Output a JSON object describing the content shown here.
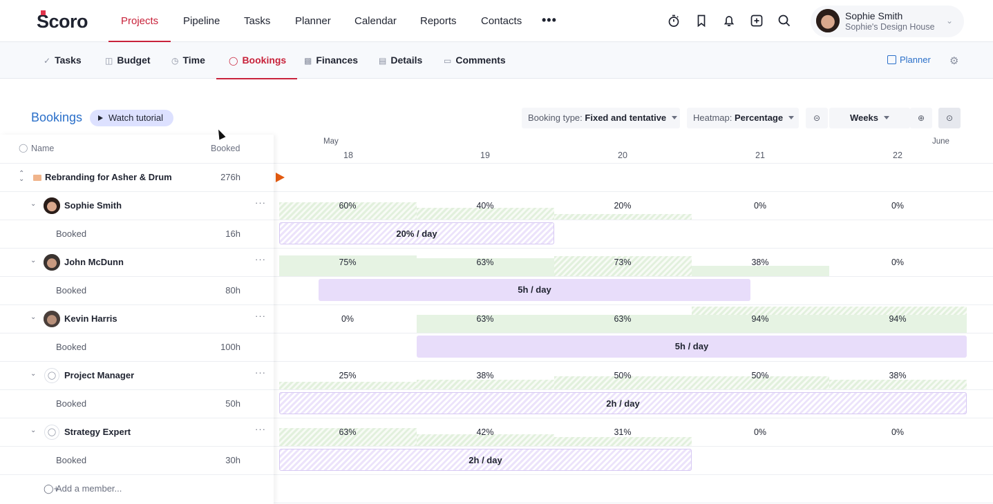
{
  "topnav": {
    "logo": "Scoro",
    "items": [
      {
        "label": "Projects",
        "active": true
      },
      {
        "label": "Pipeline"
      },
      {
        "label": "Tasks"
      },
      {
        "label": "Planner"
      },
      {
        "label": "Calendar"
      },
      {
        "label": "Reports"
      },
      {
        "label": "Contacts"
      }
    ],
    "more": "•••",
    "icons": [
      "stopwatch-icon",
      "bookmark-icon",
      "bell-icon",
      "plus-square-icon",
      "search-icon"
    ],
    "user": {
      "name": "Sophie Smith",
      "org": "Sophie's Design House"
    }
  },
  "subnav": {
    "items": [
      {
        "label": "Tasks",
        "icon": "check-icon"
      },
      {
        "label": "Budget",
        "icon": "budget-icon"
      },
      {
        "label": "Time",
        "icon": "clock-icon"
      },
      {
        "label": "Bookings",
        "icon": "person-icon",
        "active": true
      },
      {
        "label": "Finances",
        "icon": "finances-icon"
      },
      {
        "label": "Details",
        "icon": "document-icon"
      },
      {
        "label": "Comments",
        "icon": "comment-icon"
      }
    ],
    "planner_link": "Planner"
  },
  "toolbar": {
    "title": "Bookings",
    "watch_tutorial": "Watch tutorial",
    "booking_type_label": "Booking type:",
    "booking_type_value": "Fixed and tentative",
    "heatmap_label": "Heatmap:",
    "heatmap_value": "Percentage",
    "period": "Weeks"
  },
  "list": {
    "header_name": "Name",
    "header_booked": "Booked",
    "project": {
      "name": "Rebranding for Asher & Drum",
      "booked": "276h"
    },
    "members": [
      {
        "name": "Sophie Smith",
        "type": "person",
        "booked_label": "Booked",
        "booked": "16h",
        "heat": [
          "60%",
          "40%",
          "20%",
          "0%",
          "0%"
        ],
        "bar_label": "20% / day"
      },
      {
        "name": "John McDunn",
        "type": "person",
        "booked_label": "Booked",
        "booked": "80h",
        "heat": [
          "75%",
          "63%",
          "73%",
          "38%",
          "0%"
        ],
        "bar_label": "5h / day"
      },
      {
        "name": "Kevin Harris",
        "type": "person",
        "booked_label": "Booked",
        "booked": "100h",
        "heat": [
          "0%",
          "63%",
          "63%",
          "94%",
          "94%"
        ],
        "bar_label": "5h / day"
      },
      {
        "name": "Project Manager",
        "type": "role",
        "booked_label": "Booked",
        "booked": "50h",
        "heat": [
          "25%",
          "38%",
          "50%",
          "50%",
          "38%"
        ],
        "bar_label": "2h / day"
      },
      {
        "name": "Strategy Expert",
        "type": "role",
        "booked_label": "Booked",
        "booked": "30h",
        "heat": [
          "63%",
          "42%",
          "31%",
          "0%",
          "0%"
        ],
        "bar_label": "2h / day"
      }
    ],
    "add_member": "Add a member..."
  },
  "timeline": {
    "months": [
      {
        "label": "May"
      },
      {
        "label": "June"
      }
    ],
    "weeks": [
      "18",
      "19",
      "20",
      "21",
      "22"
    ]
  }
}
